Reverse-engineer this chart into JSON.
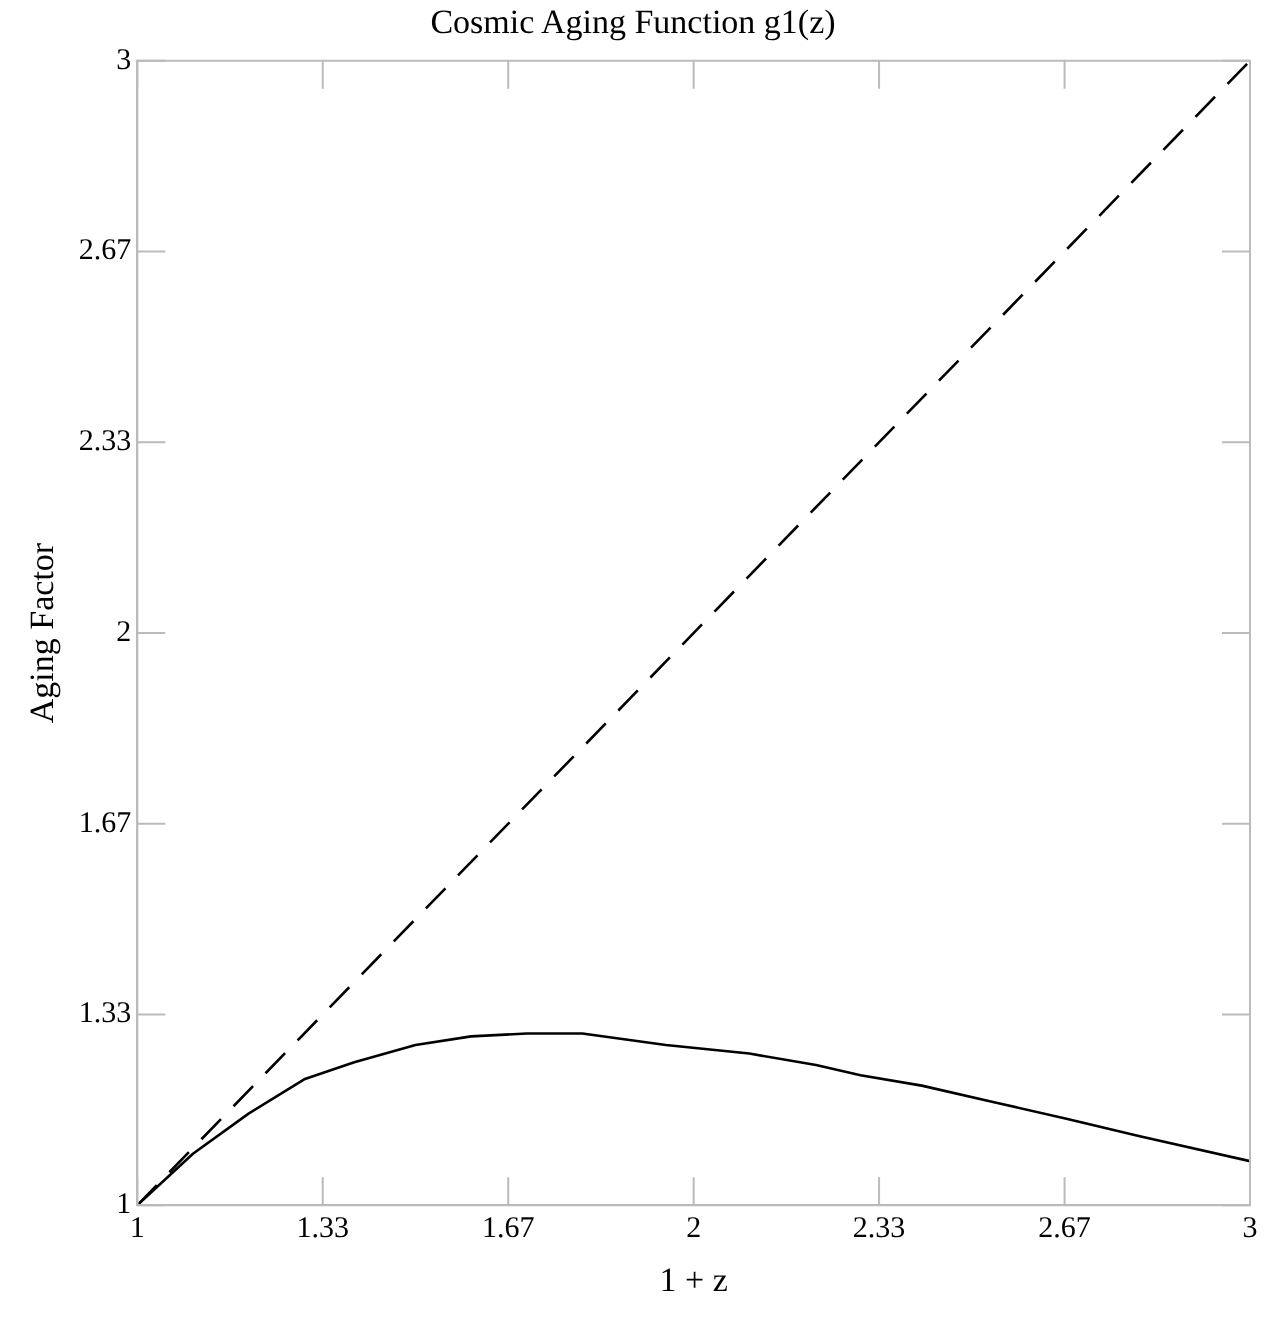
{
  "chart_data": {
    "type": "line",
    "title": "Cosmic Aging Function g1(z)",
    "xlabel": "1 + z",
    "ylabel": "Aging Factor",
    "grid": false,
    "legend": false,
    "marker": "none",
    "xlim": [
      1,
      3
    ],
    "ylim": [
      1,
      3
    ],
    "xticks": [
      1,
      {
        "value": 1.3333,
        "label": "1.33"
      },
      {
        "value": 1.6667,
        "label": "1.67"
      },
      2,
      {
        "value": 2.3333,
        "label": "2.33"
      },
      {
        "value": 2.6667,
        "label": "2.67"
      },
      3
    ],
    "yticks": [
      1,
      {
        "value": 1.3333,
        "label": "1.33"
      },
      {
        "value": 1.6667,
        "label": "1.67"
      },
      2,
      {
        "value": 2.3333,
        "label": "2.33"
      },
      {
        "value": 2.6667,
        "label": "2.67"
      },
      3
    ],
    "series": [
      {
        "color": "#000000",
        "line_style": "solid",
        "x": [
          1,
          1.1,
          1.2,
          1.3,
          1.39,
          1.5,
          1.6,
          1.7,
          1.8,
          1.95,
          2.1,
          2.22,
          2.3,
          2.41,
          2.54,
          2.67,
          2.8,
          3
        ],
        "values": [
          1,
          1.09,
          1.16,
          1.22,
          1.25,
          1.28,
          1.295,
          1.3,
          1.3,
          1.28,
          1.265,
          1.245,
          1.227,
          1.209,
          1.18,
          1.151,
          1.121,
          1.077
        ]
      },
      {
        "color": "#000000",
        "line_style": "dashed",
        "x": [
          1,
          3
        ],
        "values": [
          1,
          3
        ]
      }
    ]
  }
}
